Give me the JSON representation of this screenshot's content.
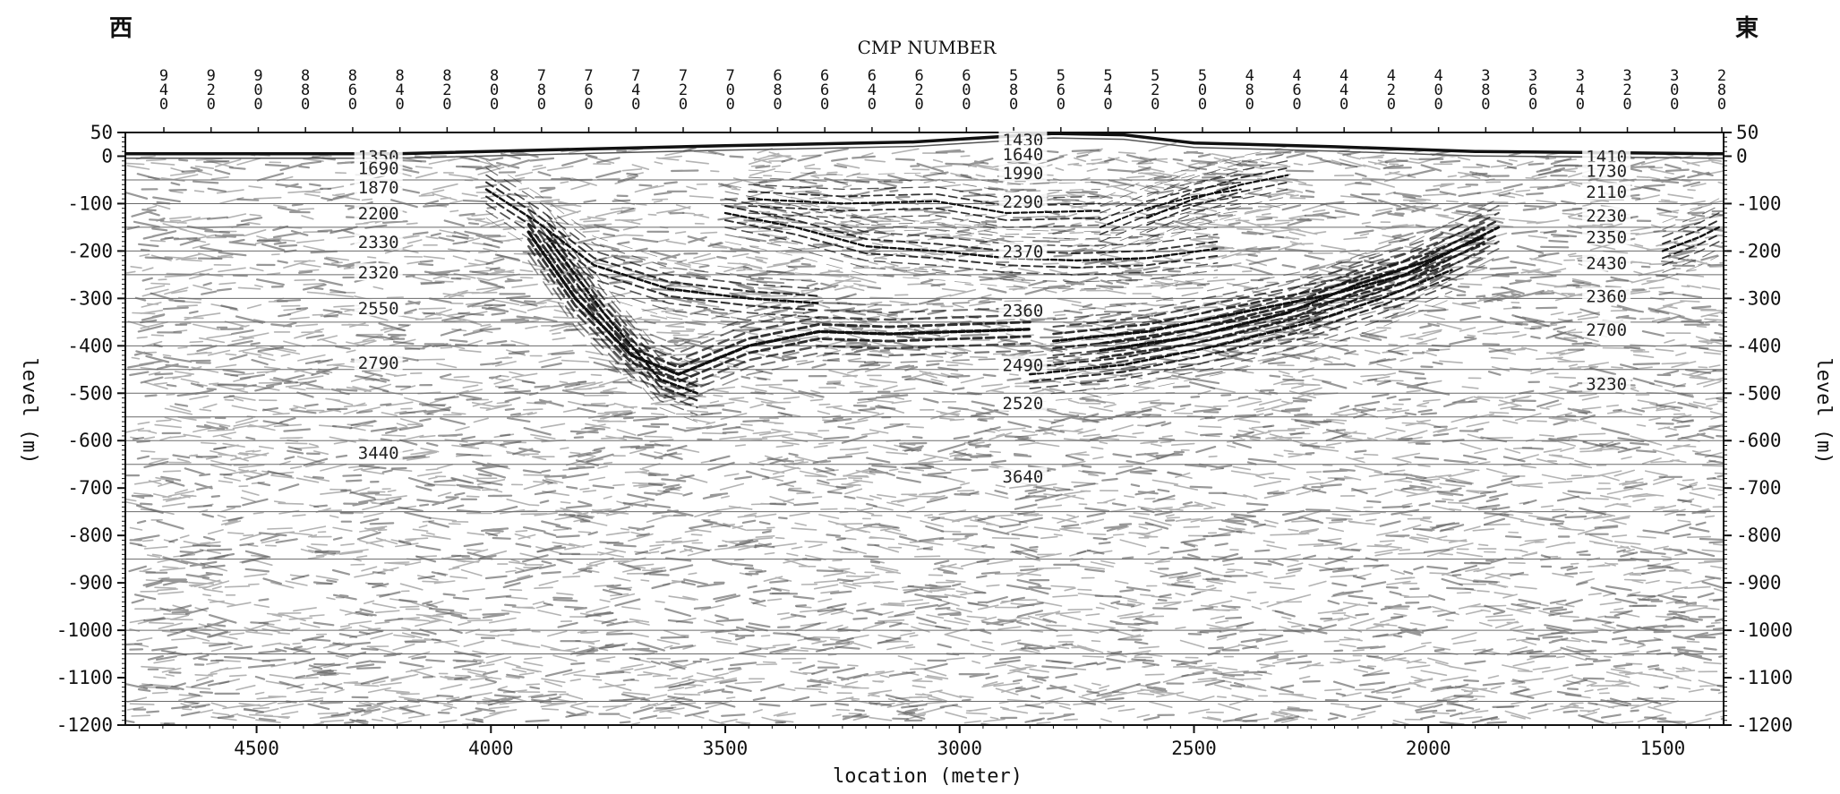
{
  "header": {
    "west_label": "西",
    "east_label": "東"
  },
  "chart_data": {
    "type": "seismic-section",
    "title": "CMP NUMBER",
    "xlabel": "location (meter)",
    "ylabel_left": "level (m)",
    "ylabel_right": "level (m)",
    "xlim": [
      4780,
      1370
    ],
    "ylim": [
      -1200,
      50
    ],
    "x_reversed": true,
    "x_ticks": [
      4500,
      4000,
      3500,
      3000,
      2500,
      2000,
      1500
    ],
    "y_ticks": [
      50,
      0,
      -100,
      -200,
      -300,
      -400,
      -500,
      -600,
      -700,
      -800,
      -900,
      -1000,
      -1100,
      -1200
    ],
    "cmp_ticks": [
      "940",
      "920",
      "900",
      "880",
      "860",
      "840",
      "820",
      "800",
      "780",
      "760",
      "740",
      "720",
      "700",
      "680",
      "660",
      "640",
      "620",
      "600",
      "580",
      "560",
      "540",
      "520",
      "500",
      "480",
      "460",
      "440",
      "420",
      "400",
      "380",
      "360",
      "340",
      "320",
      "300",
      "280"
    ],
    "horizontal_lines": [
      -50,
      -100,
      -150,
      -200,
      -250,
      -300,
      -350,
      -400,
      -450,
      -500,
      -550,
      -600,
      -650,
      -750,
      -850,
      -1000,
      -1050,
      -1150
    ],
    "velocity_columns": [
      {
        "location": 4240,
        "values": [
          {
            "level": 0,
            "v": "1350"
          },
          {
            "level": -25,
            "v": "1690"
          },
          {
            "level": -65,
            "v": "1870"
          },
          {
            "level": -120,
            "v": "2200"
          },
          {
            "level": -180,
            "v": "2330"
          },
          {
            "level": -245,
            "v": "2320"
          },
          {
            "level": -320,
            "v": "2550"
          },
          {
            "level": -435,
            "v": "2790"
          },
          {
            "level": -625,
            "v": "3440"
          }
        ]
      },
      {
        "location": 2865,
        "values": [
          {
            "level": 35,
            "v": "1430"
          },
          {
            "level": 5,
            "v": "1640"
          },
          {
            "level": -35,
            "v": "1990"
          },
          {
            "level": -95,
            "v": "2290"
          },
          {
            "level": -200,
            "v": "2370"
          },
          {
            "level": -325,
            "v": "2360"
          },
          {
            "level": -440,
            "v": "2490"
          },
          {
            "level": -520,
            "v": "2520"
          },
          {
            "level": -675,
            "v": "3640"
          }
        ]
      },
      {
        "location": 1620,
        "values": [
          {
            "level": 0,
            "v": "1410"
          },
          {
            "level": -30,
            "v": "1730"
          },
          {
            "level": -75,
            "v": "2110"
          },
          {
            "level": -125,
            "v": "2230"
          },
          {
            "level": -170,
            "v": "2350"
          },
          {
            "level": -225,
            "v": "2430"
          },
          {
            "level": -295,
            "v": "2360"
          },
          {
            "level": -365,
            "v": "2700"
          },
          {
            "level": -480,
            "v": "3230"
          }
        ]
      }
    ],
    "surface_profile": [
      [
        4780,
        5
      ],
      [
        4200,
        5
      ],
      [
        3800,
        15
      ],
      [
        3500,
        22
      ],
      [
        3100,
        30
      ],
      [
        2800,
        48
      ],
      [
        2650,
        45
      ],
      [
        2500,
        28
      ],
      [
        2200,
        20
      ],
      [
        1900,
        10
      ],
      [
        1370,
        5
      ]
    ],
    "reflectors": [
      {
        "strength": 3.4,
        "points": [
          [
            3920,
            -160
          ],
          [
            3820,
            -300
          ],
          [
            3700,
            -420
          ],
          [
            3600,
            -460
          ],
          [
            3450,
            -400
          ],
          [
            3300,
            -370
          ],
          [
            3150,
            -375
          ],
          [
            3000,
            -370
          ],
          [
            2850,
            -365
          ]
        ]
      },
      {
        "strength": 2.8,
        "points": [
          [
            3880,
            -170
          ],
          [
            3760,
            -330
          ],
          [
            3640,
            -470
          ],
          [
            3560,
            -500
          ]
        ]
      },
      {
        "strength": 2.6,
        "points": [
          [
            4010,
            -70
          ],
          [
            3900,
            -140
          ],
          [
            3780,
            -230
          ],
          [
            3620,
            -280
          ],
          [
            3450,
            -300
          ],
          [
            3300,
            -310
          ]
        ]
      },
      {
        "strength": 2.4,
        "points": [
          [
            3500,
            -120
          ],
          [
            3350,
            -150
          ],
          [
            3200,
            -190
          ],
          [
            3050,
            -200
          ],
          [
            2900,
            -215
          ],
          [
            2750,
            -220
          ],
          [
            2600,
            -215
          ],
          [
            2450,
            -195
          ]
        ]
      },
      {
        "strength": 2.2,
        "points": [
          [
            3450,
            -90
          ],
          [
            3250,
            -100
          ],
          [
            3050,
            -95
          ],
          [
            2900,
            -120
          ],
          [
            2700,
            -115
          ]
        ]
      },
      {
        "strength": 3.0,
        "points": [
          [
            2800,
            -390
          ],
          [
            2600,
            -370
          ],
          [
            2400,
            -330
          ],
          [
            2200,
            -290
          ],
          [
            2050,
            -250
          ],
          [
            1950,
            -200
          ],
          [
            1850,
            -150
          ]
        ]
      },
      {
        "strength": 3.2,
        "points": [
          [
            2700,
            -410
          ],
          [
            2500,
            -380
          ],
          [
            2300,
            -330
          ],
          [
            2150,
            -270
          ],
          [
            2000,
            -220
          ],
          [
            1880,
            -170
          ]
        ]
      },
      {
        "strength": 2.6,
        "points": [
          [
            2850,
            -460
          ],
          [
            2650,
            -440
          ],
          [
            2450,
            -400
          ],
          [
            2250,
            -350
          ],
          [
            2100,
            -300
          ],
          [
            1950,
            -240
          ]
        ]
      },
      {
        "strength": 2.2,
        "points": [
          [
            2600,
            -130
          ],
          [
            2500,
            -90
          ],
          [
            2400,
            -60
          ],
          [
            2300,
            -40
          ]
        ]
      },
      {
        "strength": 2.0,
        "points": [
          [
            2700,
            -150
          ],
          [
            2600,
            -110
          ],
          [
            2500,
            -85
          ],
          [
            2400,
            -70
          ]
        ]
      },
      {
        "strength": 2.4,
        "points": [
          [
            1500,
            -200
          ],
          [
            1420,
            -170
          ],
          [
            1380,
            -150
          ]
        ]
      }
    ]
  }
}
